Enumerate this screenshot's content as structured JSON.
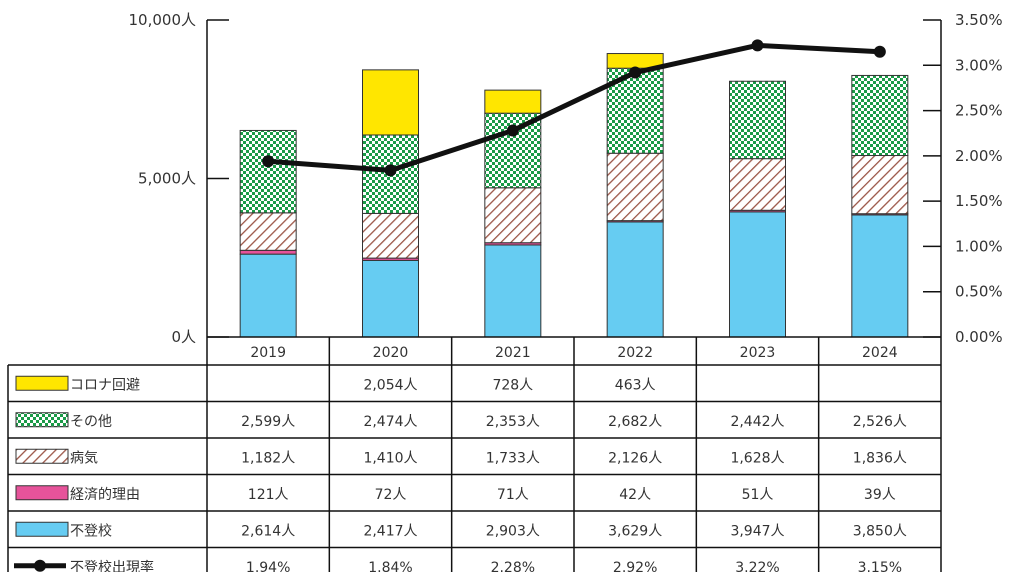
{
  "chart_data": {
    "type": "bar",
    "stacked": true,
    "categories": [
      "2019",
      "2020",
      "2021",
      "2022",
      "2023",
      "2024"
    ],
    "left_axis": {
      "min": 0,
      "max": 10000,
      "ticks": [
        0,
        5000,
        10000
      ],
      "tick_labels": [
        "0人",
        "5,000人",
        "10,000人"
      ]
    },
    "right_axis": {
      "min": 0,
      "max": 3.5,
      "ticks": [
        0,
        0.5,
        1,
        1.5,
        2,
        2.5,
        3,
        3.5
      ],
      "tick_labels": [
        "0.00%",
        "0.50%",
        "1.00%",
        "1.50%",
        "2.00%",
        "2.50%",
        "3.00%",
        "3.50%"
      ]
    },
    "series": [
      {
        "name": "不登校",
        "color": "#66ccf2",
        "pattern": "solid",
        "values": [
          2614,
          2417,
          2903,
          3629,
          3947,
          3850
        ],
        "labels": [
          "2,614人",
          "2,417人",
          "2,903人",
          "3,629人",
          "3,947人",
          "3,850人"
        ]
      },
      {
        "name": "経済的理由",
        "color": "#e6539a",
        "pattern": "solid",
        "values": [
          121,
          72,
          71,
          42,
          51,
          39
        ],
        "labels": [
          "121人",
          "72人",
          "71人",
          "42人",
          "51人",
          "39人"
        ]
      },
      {
        "name": "病気",
        "color": "#9b5546",
        "pattern": "diagonal",
        "values": [
          1182,
          1410,
          1733,
          2126,
          1628,
          1836
        ],
        "labels": [
          "1,182人",
          "1,410人",
          "1,733人",
          "2,126人",
          "1,628人",
          "1,836人"
        ]
      },
      {
        "name": "その他",
        "color": "#1a9b47",
        "pattern": "checker",
        "values": [
          2599,
          2474,
          2353,
          2682,
          2442,
          2526
        ],
        "labels": [
          "2,599人",
          "2,474人",
          "2,353人",
          "2,682人",
          "2,442人",
          "2,526人"
        ]
      },
      {
        "name": "コロナ回避",
        "color": "#ffe600",
        "pattern": "solid",
        "values": [
          0,
          2054,
          728,
          463,
          0,
          0
        ],
        "labels": [
          "",
          "2,054人",
          "728人",
          "463人",
          "",
          ""
        ]
      }
    ],
    "line": {
      "name": "不登校出現率",
      "color": "#111111",
      "axis": "right",
      "values": [
        1.94,
        1.84,
        2.28,
        2.92,
        3.22,
        3.15
      ],
      "labels": [
        "1.94%",
        "1.84%",
        "2.28%",
        "2.92%",
        "3.22%",
        "3.15%"
      ]
    },
    "table_row_order": [
      "コロナ回避",
      "その他",
      "病気",
      "経済的理由",
      "不登校",
      "不登校出現率"
    ]
  }
}
